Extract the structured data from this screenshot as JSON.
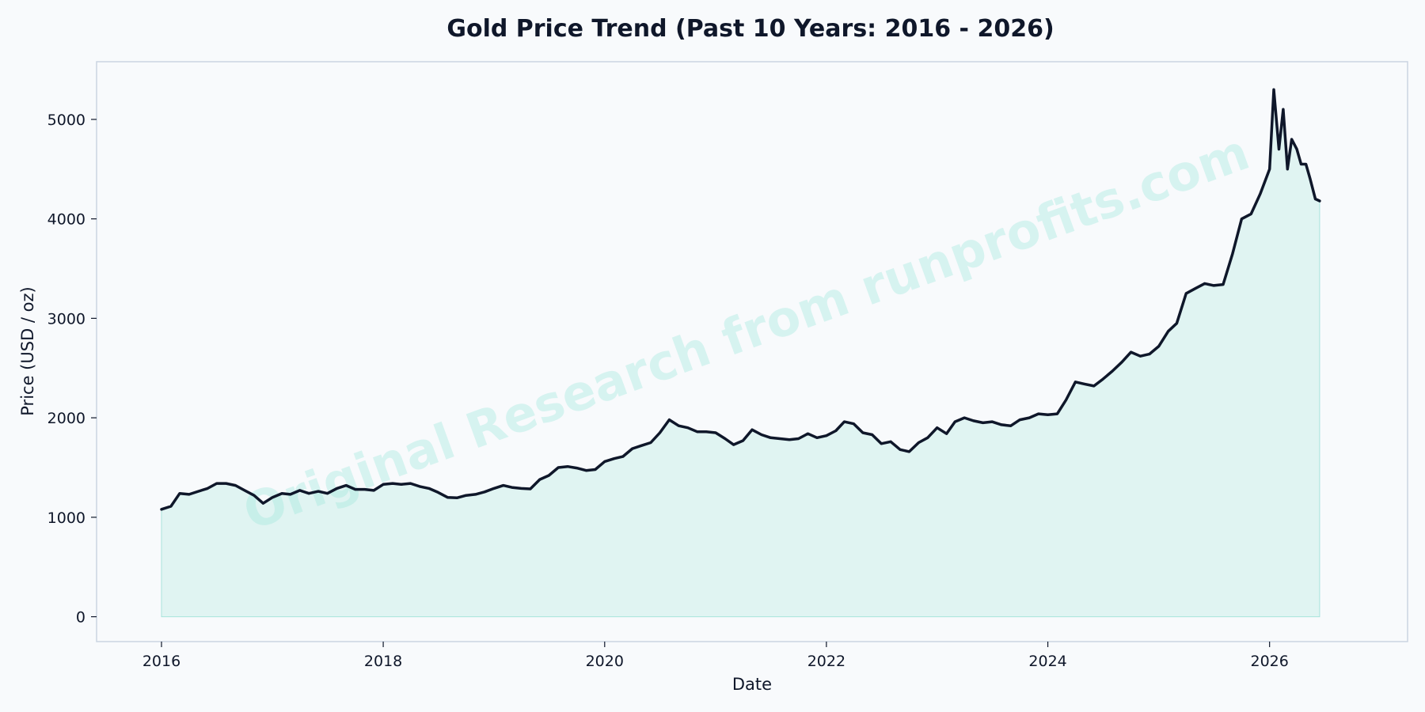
{
  "chart_data": {
    "type": "area",
    "title": "Gold Price Trend (Past 10 Years: 2016 - 2026)",
    "xlabel": "Date",
    "ylabel": "Price (USD / oz)",
    "xlim": [
      "2015-06-01",
      "2027-04-01"
    ],
    "ylim": [
      -250,
      5580
    ],
    "x_ticks": [
      "2016-01-01",
      "2018-01-01",
      "2020-01-01",
      "2022-01-01",
      "2024-01-01",
      "2026-01-01"
    ],
    "x_tick_labels": [
      "2016",
      "2018",
      "2020",
      "2022",
      "2024",
      "2026"
    ],
    "y_ticks": [
      0,
      1000,
      2000,
      3000,
      4000,
      5000
    ],
    "grid": false,
    "line_color": "#0f172a",
    "fill_color": "#e0f4f2",
    "series": [
      {
        "x": [
          "2016-01-01",
          "2016-02-01",
          "2016-03-01",
          "2016-04-01",
          "2016-05-01",
          "2016-06-01",
          "2016-07-01",
          "2016-08-01",
          "2016-09-01",
          "2016-10-01",
          "2016-11-01",
          "2016-12-01",
          "2017-01-01",
          "2017-02-01",
          "2017-03-01",
          "2017-04-01",
          "2017-05-01",
          "2017-06-01",
          "2017-07-01",
          "2017-08-01",
          "2017-09-01",
          "2017-10-01",
          "2017-11-01",
          "2017-12-01",
          "2018-01-01",
          "2018-02-01",
          "2018-03-01",
          "2018-04-01",
          "2018-05-01",
          "2018-06-01",
          "2018-07-01",
          "2018-08-01",
          "2018-09-01",
          "2018-10-01",
          "2018-11-01",
          "2018-12-01",
          "2019-01-01",
          "2019-02-01",
          "2019-03-01",
          "2019-04-01",
          "2019-05-01",
          "2019-06-01",
          "2019-07-01",
          "2019-08-01",
          "2019-09-01",
          "2019-10-01",
          "2019-11-01",
          "2019-12-01",
          "2020-01-01",
          "2020-02-01",
          "2020-03-01",
          "2020-04-01",
          "2020-05-01",
          "2020-06-01",
          "2020-07-01",
          "2020-08-01",
          "2020-09-01",
          "2020-10-01",
          "2020-11-01",
          "2020-12-01",
          "2021-01-01",
          "2021-02-01",
          "2021-03-01",
          "2021-04-01",
          "2021-05-01",
          "2021-06-01",
          "2021-07-01",
          "2021-08-01",
          "2021-09-01",
          "2021-10-01",
          "2021-11-01",
          "2021-12-01",
          "2022-01-01",
          "2022-02-01",
          "2022-03-01",
          "2022-04-01",
          "2022-05-01",
          "2022-06-01",
          "2022-07-01",
          "2022-08-01",
          "2022-09-01",
          "2022-10-01",
          "2022-11-01",
          "2022-12-01",
          "2023-01-01",
          "2023-02-01",
          "2023-03-01",
          "2023-04-01",
          "2023-05-01",
          "2023-06-01",
          "2023-07-01",
          "2023-08-01",
          "2023-09-01",
          "2023-10-01",
          "2023-11-01",
          "2023-12-01",
          "2024-01-01",
          "2024-02-01",
          "2024-03-01",
          "2024-04-01",
          "2024-05-01",
          "2024-06-01",
          "2024-07-01",
          "2024-08-01",
          "2024-09-01",
          "2024-10-01",
          "2024-11-01",
          "2024-12-01",
          "2025-01-01",
          "2025-02-01",
          "2025-03-01",
          "2025-04-01",
          "2025-05-01",
          "2025-06-01",
          "2025-07-01",
          "2025-08-01",
          "2025-09-01",
          "2025-10-01",
          "2025-11-01",
          "2025-12-01",
          "2026-01-01",
          "2026-01-15",
          "2026-02-01",
          "2026-02-15",
          "2026-03-01",
          "2026-03-15",
          "2026-04-01",
          "2026-04-15",
          "2026-05-01",
          "2026-05-15",
          "2026-06-01",
          "2026-06-15"
        ],
        "values": [
          1080,
          1110,
          1240,
          1230,
          1260,
          1290,
          1340,
          1340,
          1320,
          1270,
          1220,
          1140,
          1200,
          1240,
          1230,
          1270,
          1240,
          1260,
          1240,
          1290,
          1320,
          1280,
          1280,
          1270,
          1330,
          1340,
          1330,
          1340,
          1310,
          1290,
          1250,
          1200,
          1195,
          1220,
          1230,
          1255,
          1290,
          1320,
          1300,
          1290,
          1285,
          1380,
          1420,
          1500,
          1510,
          1495,
          1470,
          1480,
          1560,
          1590,
          1610,
          1690,
          1720,
          1750,
          1850,
          1980,
          1920,
          1900,
          1860,
          1860,
          1850,
          1790,
          1730,
          1770,
          1880,
          1830,
          1800,
          1790,
          1780,
          1790,
          1840,
          1800,
          1820,
          1870,
          1960,
          1940,
          1850,
          1830,
          1740,
          1760,
          1680,
          1660,
          1750,
          1800,
          1900,
          1840,
          1960,
          2000,
          1970,
          1950,
          1960,
          1930,
          1920,
          1980,
          2000,
          2040,
          2030,
          2040,
          2180,
          2360,
          2340,
          2320,
          2390,
          2470,
          2560,
          2660,
          2620,
          2640,
          2720,
          2870,
          2950,
          3250,
          3300,
          3350,
          3330,
          3340,
          3650,
          4000,
          4050,
          4250,
          4500,
          5300,
          4700,
          5100,
          4500,
          4800,
          4700,
          4550,
          4550,
          4400,
          4200,
          4180
        ]
      }
    ],
    "watermark": "Original Research from runprofits.com"
  }
}
